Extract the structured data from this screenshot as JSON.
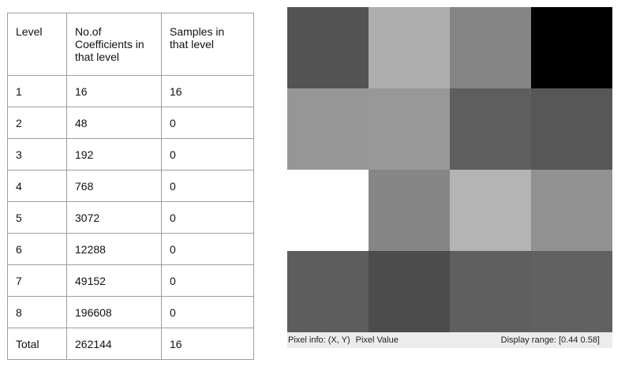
{
  "table": {
    "headers": [
      "Level",
      "No.of Coefficients in that level",
      "Samples in that level"
    ],
    "rows": [
      [
        "1",
        "16",
        "16"
      ],
      [
        "2",
        "48",
        "0"
      ],
      [
        "3",
        "192",
        "0"
      ],
      [
        "4",
        "768",
        "0"
      ],
      [
        "5",
        "3072",
        "0"
      ],
      [
        "6",
        "12288",
        "0"
      ],
      [
        "7",
        "49152",
        "0"
      ],
      [
        "8",
        "196608",
        "0"
      ],
      [
        "Total",
        "262144",
        "16"
      ]
    ]
  },
  "viewer": {
    "pixels": [
      [
        "#535353",
        "#aeaeae",
        "#858585",
        "#000000"
      ],
      [
        "#969696",
        "#989898",
        "#5e5e5e",
        "#575757"
      ],
      [
        "#ffffff",
        "#868686",
        "#b4b4b4",
        "#919191"
      ],
      [
        "#5d5d5d",
        "#4c4c4c",
        "#5f5f5f",
        "#616161"
      ]
    ],
    "status": {
      "pixel_info_label": "Pixel info:",
      "coords_label": "(X, Y)",
      "pixel_value_label": "Pixel Value",
      "display_range_label": "Display range:",
      "display_range_value": "[0.44 0.58]"
    }
  }
}
